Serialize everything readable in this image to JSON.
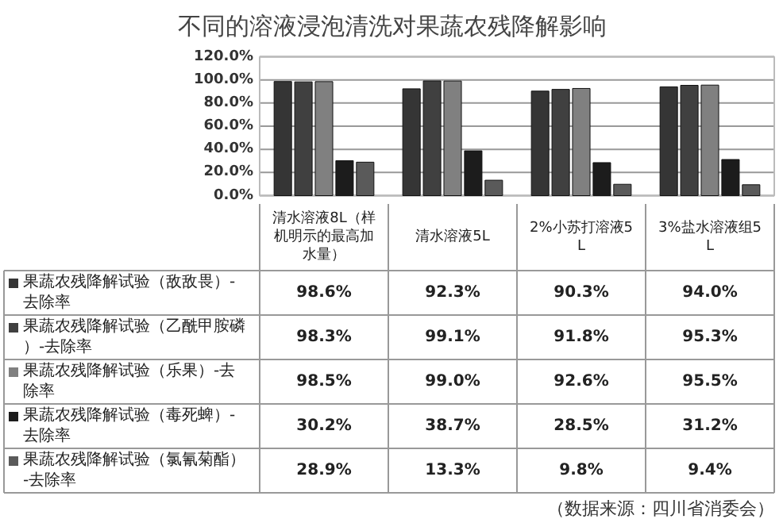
{
  "chart_data": {
    "type": "bar",
    "title": "不同的溶液浸泡清洗对果蔬农残降解影响",
    "categories": [
      "清水溶液8L（样机明示的最高加水量）",
      "清水溶液5L",
      "2%小苏打溶液5L",
      "3%盐水溶液组5L"
    ],
    "series": [
      {
        "name": "果蔬农残降解试验（敌敌畏）-去除率",
        "color": "#353535",
        "values": [
          98.6,
          92.3,
          90.3,
          94.0
        ],
        "value_labels": [
          "98.6%",
          "92.3%",
          "90.3%",
          "94.0%"
        ]
      },
      {
        "name": "果蔬农残降解试验（乙酰甲胺磷）-去除率",
        "color": "#404040",
        "values": [
          98.3,
          99.1,
          91.8,
          95.3
        ],
        "value_labels": [
          "98.3%",
          "99.1%",
          "91.8%",
          "95.3%"
        ]
      },
      {
        "name": "果蔬农残降解试验（乐果）-去除率",
        "color": "#808080",
        "values": [
          98.5,
          99.0,
          92.6,
          95.5
        ],
        "value_labels": [
          "98.5%",
          "99.0%",
          "92.6%",
          "95.5%"
        ]
      },
      {
        "name": "果蔬农残降解试验（毒死蜱）-去除率",
        "color": "#1c1c1c",
        "values": [
          30.2,
          38.7,
          28.5,
          31.2
        ],
        "value_labels": [
          "30.2%",
          "38.7%",
          "28.5%",
          "31.2%"
        ]
      },
      {
        "name": "果蔬农残降解试验（氯氰菊酯）-去除率",
        "color": "#5a5a5a",
        "values": [
          28.9,
          13.3,
          9.8,
          9.4
        ],
        "value_labels": [
          "28.9%",
          "13.3%",
          "9.8%",
          "9.4%"
        ]
      }
    ],
    "ylim": [
      0,
      120
    ],
    "yticks": [
      {
        "value": 0,
        "label": "0.0%"
      },
      {
        "value": 20,
        "label": "20.0%"
      },
      {
        "value": 40,
        "label": "40.0%"
      },
      {
        "value": 60,
        "label": "60.0%"
      },
      {
        "value": 80,
        "label": "80.0%"
      },
      {
        "value": 100,
        "label": "100.0%"
      },
      {
        "value": 120,
        "label": "120.0%"
      }
    ],
    "grid": "y",
    "legend": "bottom",
    "annotations": [
      "（数据来源：四川省消委会）"
    ]
  }
}
